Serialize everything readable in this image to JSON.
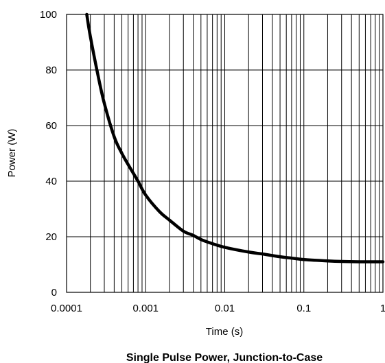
{
  "chart_data": {
    "type": "line",
    "title": "Single Pulse Power, Junction-to-Case",
    "xlabel": "Time (s)",
    "ylabel": "Power  (W)",
    "xscale": "log",
    "xlim": [
      0.0001,
      1
    ],
    "ylim": [
      0,
      100
    ],
    "x_ticks": [
      "0.0001",
      "0.001",
      "0.01",
      "0.1",
      "1"
    ],
    "y_ticks": [
      "0",
      "20",
      "40",
      "60",
      "80",
      "100"
    ],
    "grid": true,
    "line_color": "#000000",
    "series": [
      {
        "x": [
          0.00018,
          0.0002,
          0.00025,
          0.0003,
          0.0004,
          0.0005,
          0.0006,
          0.0008,
          0.001,
          0.0015,
          0.002,
          0.003,
          0.004,
          0.005,
          0.007,
          0.01,
          0.02,
          0.03,
          0.05,
          0.07,
          0.1,
          0.2,
          0.3,
          0.5,
          0.7,
          1
        ],
        "y": [
          100,
          92,
          78,
          68,
          56,
          50,
          46,
          40,
          35,
          29,
          26,
          22,
          20.5,
          19,
          17.5,
          16.2,
          14.5,
          13.8,
          12.8,
          12.3,
          11.8,
          11.3,
          11.1,
          11.0,
          11.0,
          11.0
        ]
      }
    ]
  }
}
